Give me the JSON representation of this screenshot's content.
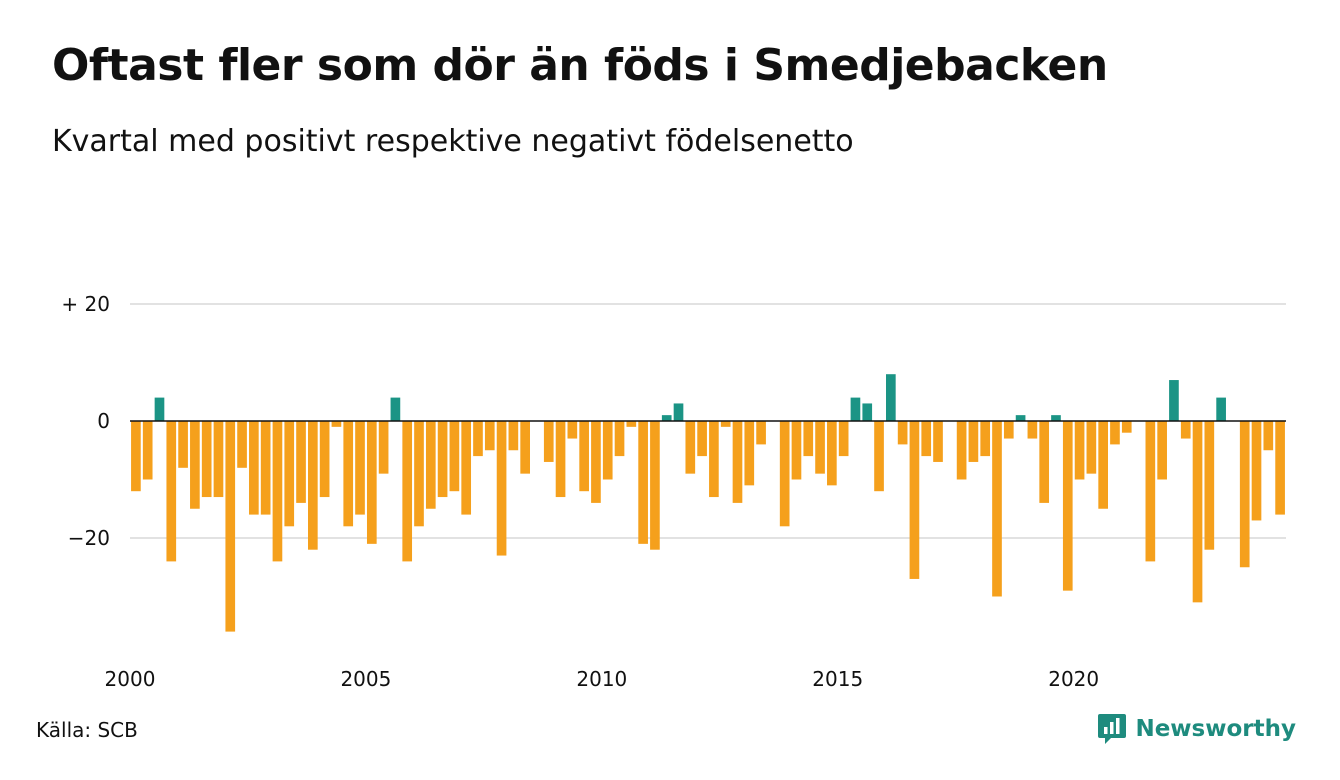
{
  "title": "Oftast fler som dör än föds i Smedjebacken",
  "subtitle": "Kvartal med positivt respektive negativt födelsenetto",
  "source": "Källa: SCB",
  "brand": "Newsworthy",
  "icons": {
    "brand_logo": "newsworthy-logo-icon"
  },
  "colors": {
    "positive": "#1b9485",
    "negative": "#f5a01c",
    "grid": "#d9d9d9",
    "zero_line": "#111111",
    "brand": "#1e8b7e"
  },
  "chart_data": {
    "type": "bar",
    "x_start": 2000,
    "periods_per_year": 4,
    "y_ticks": [
      {
        "value": 20,
        "label": "+ 20"
      },
      {
        "value": 0,
        "label": "0"
      },
      {
        "value": -20,
        "label": "−20"
      }
    ],
    "x_ticks": [
      {
        "value": 2000,
        "label": "2000"
      },
      {
        "value": 2005,
        "label": "2005"
      },
      {
        "value": 2010,
        "label": "2010"
      },
      {
        "value": 2015,
        "label": "2015"
      },
      {
        "value": 2020,
        "label": "2020"
      }
    ],
    "ylim": [
      -38,
      22
    ],
    "values": [
      -12,
      -10,
      4,
      -24,
      -8,
      -15,
      -13,
      -13,
      -36,
      -8,
      -16,
      -16,
      -24,
      -18,
      -14,
      -22,
      -13,
      -1,
      -18,
      -16,
      -21,
      -9,
      4,
      -24,
      -18,
      -15,
      -13,
      -12,
      -16,
      -6,
      -5,
      -23,
      -5,
      -9,
      0,
      -7,
      -13,
      -3,
      -12,
      -14,
      -10,
      -6,
      -1,
      -21,
      -22,
      1,
      3,
      -9,
      -6,
      -13,
      -1,
      -14,
      -11,
      -4,
      0,
      -18,
      -10,
      -6,
      -9,
      -11,
      -6,
      4,
      3,
      -12,
      8,
      -4,
      -27,
      -6,
      -7,
      0,
      -10,
      -7,
      -6,
      -30,
      -3,
      1,
      -3,
      -14,
      1,
      -29,
      -10,
      -9,
      -15,
      -4,
      -2,
      0,
      -24,
      -10,
      7,
      -3,
      -31,
      -22,
      4,
      0,
      -25,
      -17,
      -5,
      -16
    ],
    "grid": true,
    "legend": "none"
  }
}
